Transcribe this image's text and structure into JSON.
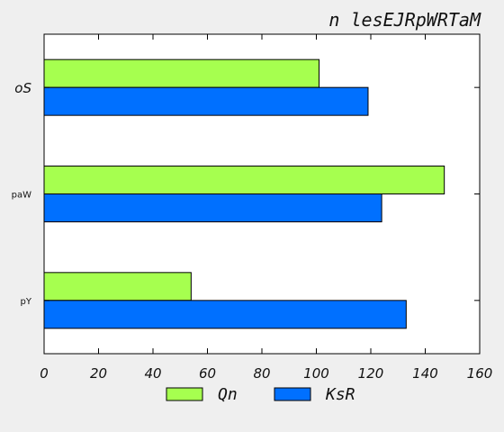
{
  "chart_data": {
    "type": "bar",
    "orientation": "horizontal",
    "title": "n lesEJRpWRTaM",
    "xlabel": "",
    "ylabel": "",
    "xlim": [
      0,
      160
    ],
    "xticks": [
      0,
      20,
      40,
      60,
      80,
      100,
      120,
      140,
      160
    ],
    "categories": [
      "oS",
      "paW",
      "pY"
    ],
    "series": [
      {
        "name": "Qn",
        "color": "#a6ff4f",
        "values": [
          101,
          147,
          54
        ]
      },
      {
        "name": "KsR",
        "color": "#0070ff",
        "values": [
          119,
          124,
          133
        ]
      }
    ],
    "grid": false,
    "legend_position": "bottom"
  }
}
